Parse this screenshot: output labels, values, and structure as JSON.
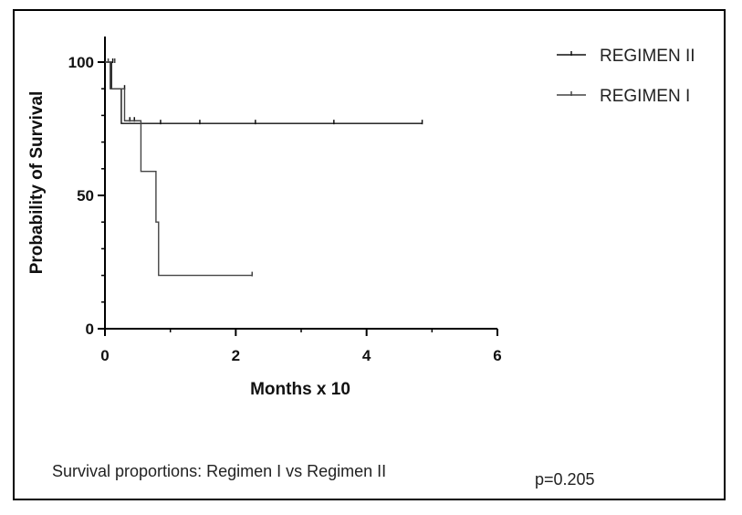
{
  "chart_data": {
    "type": "line",
    "subtype": "kaplan-meier",
    "xlabel": "Months x 10",
    "ylabel": "Probability of Survival",
    "xlim": [
      0,
      6
    ],
    "ylim": [
      0,
      100
    ],
    "x_ticks": [
      "0",
      "2",
      "4",
      "6"
    ],
    "y_ticks": [
      "0",
      "50",
      "100"
    ],
    "grid": false,
    "legend_position": "top-right",
    "series": [
      {
        "name": "REGIMEN II",
        "color": "#111111",
        "steps": [
          [
            0,
            100
          ],
          [
            0.1,
            90
          ],
          [
            0.25,
            77
          ],
          [
            4.85,
            77
          ]
        ],
        "censored": [
          [
            0.12,
            100
          ],
          [
            0.3,
            90
          ],
          [
            0.38,
            78
          ],
          [
            0.45,
            78
          ],
          [
            0.85,
            77
          ],
          [
            1.45,
            77
          ],
          [
            2.3,
            77
          ],
          [
            3.5,
            77
          ],
          [
            4.85,
            77
          ]
        ]
      },
      {
        "name": "REGIMEN I",
        "color": "#444444",
        "steps": [
          [
            0,
            100
          ],
          [
            0.08,
            90
          ],
          [
            0.3,
            78
          ],
          [
            0.55,
            59
          ],
          [
            0.78,
            40
          ],
          [
            0.82,
            20
          ],
          [
            2.25,
            20
          ]
        ],
        "censored": [
          [
            0.05,
            100
          ],
          [
            0.15,
            100
          ],
          [
            2.25,
            20
          ]
        ]
      }
    ]
  },
  "caption": "Survival proportions: Regimen I vs Regimen II",
  "p_value": "p=0.205"
}
